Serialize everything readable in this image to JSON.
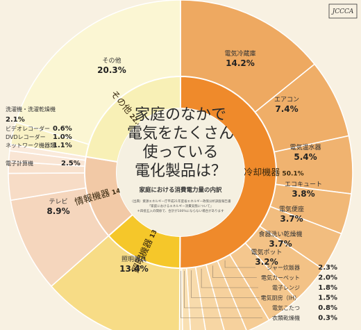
{
  "logo": "JCCCA",
  "chart_data": {
    "type": "pie",
    "center_title": [
      "家庭のなかで",
      "電気をたくさん",
      "使っている",
      "電化製品は？"
    ],
    "subtitle": "家庭における消費電力量の内訳",
    "source": [
      "（出典）資源エネルギー庁平成21年度省エネルギー政策分析調査報告書",
      "「家庭におけるエネルギー消費実態について」",
      "＊四捨五入の関係で、合計が100%にならない場合があります"
    ],
    "categories": [
      {
        "name": "加熱・冷却機器",
        "value": 50.1,
        "label": "加熱・冷却機器 50.1%"
      },
      {
        "name": "照明機器",
        "value": 13.4,
        "label": "照明機器 13.4%"
      },
      {
        "name": "情報機器",
        "value": 14.1,
        "label": "情報機器 14.1%"
      },
      {
        "name": "その他",
        "value": 22.4,
        "label": "その他 22.4%"
      }
    ],
    "items": [
      {
        "name": "電気冷蔵庫",
        "value": 14.2,
        "pct": "14.2%",
        "category": "加熱・冷却機器",
        "color": "#eea961"
      },
      {
        "name": "エアコン",
        "value": 7.4,
        "pct": "7.4%",
        "category": "加熱・冷却機器",
        "color": "#efae68"
      },
      {
        "name": "電気温水器",
        "value": 5.4,
        "pct": "5.4%",
        "category": "加熱・冷却機器",
        "color": "#f0b370"
      },
      {
        "name": "エコキュート",
        "value": 3.8,
        "pct": "3.8%",
        "category": "加熱・冷却機器",
        "color": "#f1b877"
      },
      {
        "name": "電気便座",
        "value": 3.7,
        "pct": "3.7%",
        "category": "加熱・冷却機器",
        "color": "#f2bd7f"
      },
      {
        "name": "食器洗い乾燥機",
        "value": 3.7,
        "pct": "3.7%",
        "category": "加熱・冷却機器",
        "color": "#f3c286"
      },
      {
        "name": "電気ポット",
        "value": 3.2,
        "pct": "3.2%",
        "category": "加熱・冷却機器",
        "color": "#f4c78e"
      },
      {
        "name": "ジャー炊飯器",
        "value": 2.3,
        "pct": "2.3%",
        "category": "加熱・冷却機器",
        "color": "#f5cc95"
      },
      {
        "name": "電気カーペット",
        "value": 2.0,
        "pct": "2.0%",
        "category": "加熱・冷却機器",
        "color": "#f6d19d"
      },
      {
        "name": "電子レンジ",
        "value": 1.8,
        "pct": "1.8%",
        "category": "加熱・冷却機器",
        "color": "#f7d6a4"
      },
      {
        "name": "電気厨房（IH）",
        "value": 1.5,
        "pct": "1.5%",
        "category": "加熱・冷却機器",
        "color": "#f8dbac"
      },
      {
        "name": "電気こたつ",
        "value": 0.8,
        "pct": "0.8%",
        "category": "加熱・冷却機器",
        "color": "#f9e0b3"
      },
      {
        "name": "衣類乾燥機",
        "value": 0.3,
        "pct": "0.3%",
        "category": "加熱・冷却機器",
        "color": "#fae5bb"
      },
      {
        "name": "照明器具",
        "value": 13.4,
        "pct": "13.4%",
        "category": "照明機器",
        "color": "#f7dc86"
      },
      {
        "name": "テレビ",
        "value": 8.9,
        "pct": "8.9%",
        "category": "情報機器",
        "color": "#f5d6bd"
      },
      {
        "name": "電子計算機",
        "value": 2.5,
        "pct": "2.5%",
        "category": "情報機器",
        "color": "#f7dcc6"
      },
      {
        "name": "ネットワーク機器類",
        "value": 1.1,
        "pct": "1.1%",
        "category": "情報機器",
        "color": "#f8e1cd"
      },
      {
        "name": "DVDレコーダー",
        "value": 1.0,
        "pct": "1.0%",
        "category": "情報機器",
        "color": "#f9e5d4"
      },
      {
        "name": "ビデオレコーダー",
        "value": 0.6,
        "pct": "0.6%",
        "category": "情報機器",
        "color": "#faeadb"
      },
      {
        "name": "洗濯機・洗濯乾燥機",
        "value": 2.1,
        "pct": "2.1%",
        "category": "その他",
        "color": "#f9f2c6"
      },
      {
        "name": "その他",
        "value": 20.3,
        "pct": "20.3%",
        "category": "その他",
        "color": "#fbf6d3"
      }
    ],
    "colors": {
      "加熱・冷却機器": "#ef8a2b",
      "照明機器": "#f5c72a",
      "情報機器": "#f2c9a6",
      "その他": "#f8f0b6",
      "center": "#f5f0e1",
      "background": "#f8f1e2"
    }
  }
}
